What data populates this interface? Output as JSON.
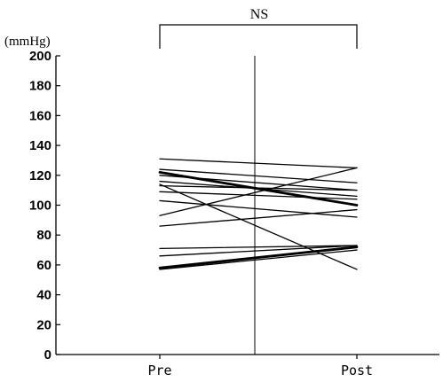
{
  "chart_data": {
    "type": "line",
    "title": "",
    "xlabel": "",
    "ylabel": "(mmHg)",
    "categories": [
      "Pre",
      "Post"
    ],
    "ylim": [
      0,
      200
    ],
    "yticks": [
      0,
      20,
      40,
      60,
      80,
      100,
      120,
      140,
      160,
      180,
      200
    ],
    "grid": false,
    "legend": "none",
    "annotation": "NS",
    "series": [
      {
        "values": [
          131,
          125
        ],
        "emphasis": false
      },
      {
        "values": [
          124,
          115
        ],
        "emphasis": false
      },
      {
        "values": [
          122,
          100
        ],
        "emphasis": true
      },
      {
        "values": [
          120,
          110
        ],
        "emphasis": false
      },
      {
        "values": [
          116,
          106
        ],
        "emphasis": false
      },
      {
        "values": [
          114,
          57
        ],
        "emphasis": false
      },
      {
        "values": [
          113,
          110
        ],
        "emphasis": false
      },
      {
        "values": [
          109,
          104
        ],
        "emphasis": false
      },
      {
        "values": [
          103,
          92
        ],
        "emphasis": false
      },
      {
        "values": [
          93,
          125
        ],
        "emphasis": false
      },
      {
        "values": [
          86,
          97
        ],
        "emphasis": false
      },
      {
        "values": [
          71,
          73
        ],
        "emphasis": false
      },
      {
        "values": [
          66,
          73
        ],
        "emphasis": false
      },
      {
        "values": [
          58,
          72
        ],
        "emphasis": true
      },
      {
        "values": [
          57,
          70
        ],
        "emphasis": false
      }
    ]
  }
}
